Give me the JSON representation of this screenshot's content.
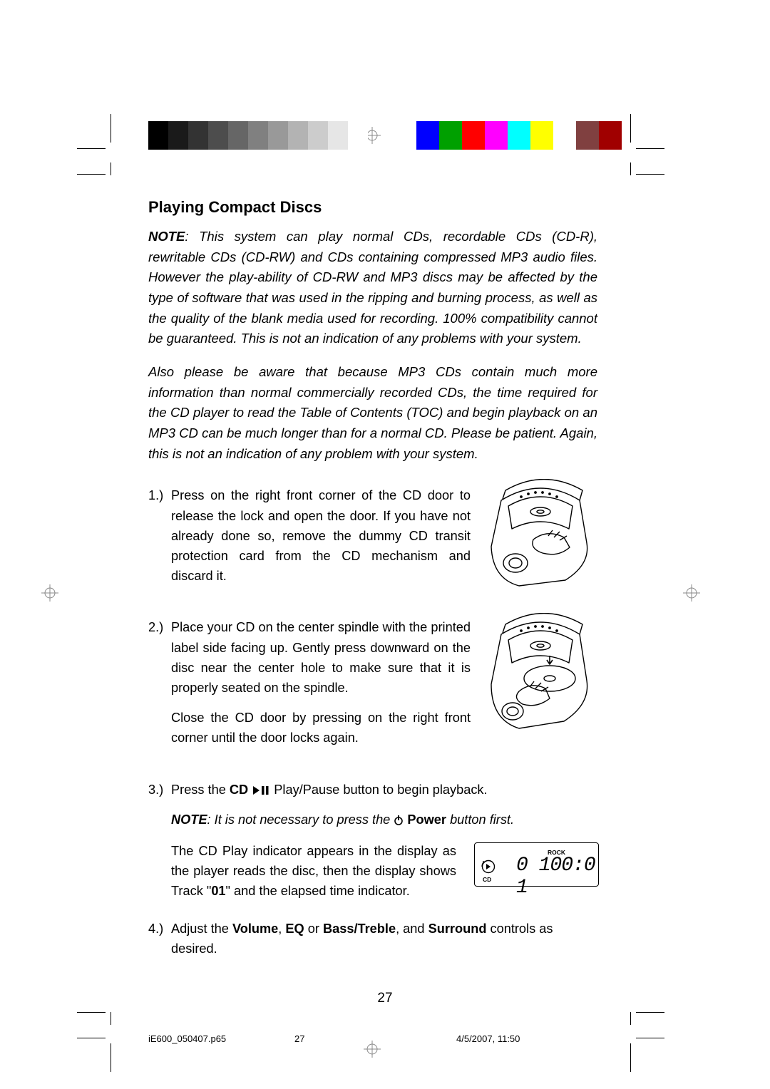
{
  "colorbar": {
    "left_swatches": [
      "#000000",
      "#1a1a1a",
      "#333333",
      "#4d4d4d",
      "#666666",
      "#808080",
      "#999999",
      "#b3b3b3",
      "#cccccc",
      "#e6e6e6",
      "#ffffff"
    ],
    "right_swatches": [
      "#0000ff",
      "#00a000",
      "#ff0000",
      "#ff00ff",
      "#00ffff",
      "#ffff00",
      "#ffffff",
      "#804040",
      "#a00000"
    ]
  },
  "heading": "Playing Compact Discs",
  "note1_label": "NOTE",
  "note1_body": ": This system can play normal CDs, recordable CDs (CD-R), rewritable CDs (CD-RW) and CDs containing compressed MP3 audio files. However the play-ability of CD-RW and MP3 discs may be affected by the type of software that was used in the ripping and burning process, as well as the quality of the blank media used for recording. 100% compatibility cannot be guaranteed. This is not an indication of any problems with your system.",
  "note2": "Also please be aware that because MP3 CDs contain much more information than normal commercially recorded CDs, the time required for the CD player to read the Table of Contents (TOC) and begin playback on an MP3 CD can be much longer than for a normal CD. Please be patient. Again, this is not an indication of any problem with your system.",
  "steps": {
    "s1_num": "1.)",
    "s1": "Press on the right front corner of the CD door to release the lock and open the door. If you have not already done so, remove the dummy CD transit protection card from the CD mechanism and discard it.",
    "s2_num": "2.)",
    "s2a": "Place your CD on the center spindle with the printed label side facing up. Gently press downward on the disc near the center hole to make sure that it is properly seated on the spindle.",
    "s2b": "Close the CD door by pressing on the right front corner until the door locks again.",
    "s3_num": "3.)",
    "s3_pre": "Press the ",
    "s3_cd": "CD",
    "s3_post": " Play/Pause button to begin playback.",
    "s3_note_label": "NOTE",
    "s3_note_pre": ": It is not necessary to press the ",
    "s3_note_power": "Power",
    "s3_note_post": " button first.",
    "s3_body_pre": "The CD Play indicator appears in the display as the player reads the disc, then the display shows Track \"",
    "s3_body_bold": "01",
    "s3_body_post": "\" and the elapsed time indicator.",
    "s4_num": "4.)",
    "s4_pre": "Adjust the ",
    "s4_b1": "Volume",
    "s4_c1": ", ",
    "s4_b2": "EQ",
    "s4_c2": " or ",
    "s4_b3": "Bass/Treble",
    "s4_c3": ", and ",
    "s4_b4": "Surround",
    "s4_post": " controls as desired."
  },
  "lcd": {
    "rock": "ROCK",
    "cd": "CD",
    "readout": "0 100:0 1"
  },
  "page_number": "27",
  "footer": {
    "file": "iE600_050407.p65",
    "page": "27",
    "timestamp": "4/5/2007, 11:50"
  }
}
